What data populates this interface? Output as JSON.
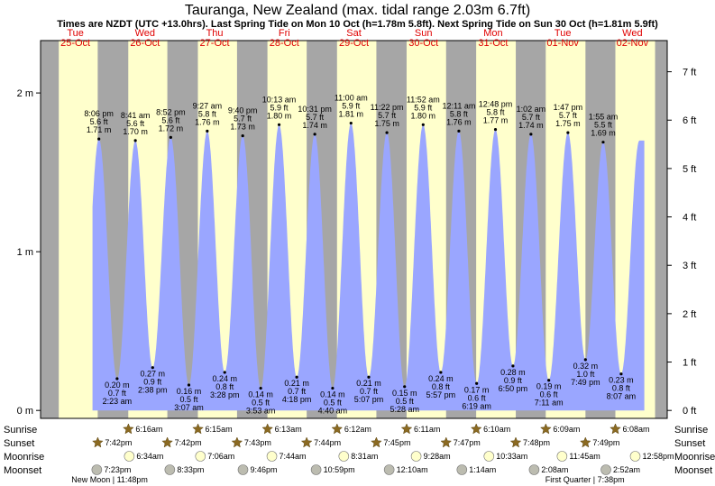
{
  "chart_data": {
    "type": "area",
    "title": "Tauranga, New Zealand (max. tidal range 2.03m 6.7ft)",
    "subtitle": "Times are NZDT (UTC +13.0hrs). Last Spring Tide on Mon 10 Oct (h=1.78m 5.8ft). Next Spring Tide on Sun 30 Oct (h=1.81m 5.9ft)",
    "ylim_m": [
      -0.05,
      2.33
    ],
    "left_axis": {
      "unit": "m",
      "ticks": [
        0,
        1,
        2
      ],
      "labels": [
        "0 m",
        "1 m",
        "2 m"
      ]
    },
    "right_axis": {
      "unit": "ft",
      "ticks": [
        0,
        1,
        2,
        3,
        4,
        5,
        6,
        7
      ],
      "labels": [
        "0 ft",
        "1 ft",
        "2 ft",
        "3 ft",
        "4 ft",
        "5 ft",
        "6 ft",
        "7 ft"
      ]
    },
    "days": [
      {
        "weekday": "Tue",
        "date": "25-Oct"
      },
      {
        "weekday": "Wed",
        "date": "26-Oct"
      },
      {
        "weekday": "Thu",
        "date": "27-Oct"
      },
      {
        "weekday": "Fri",
        "date": "28-Oct"
      },
      {
        "weekday": "Sat",
        "date": "29-Oct"
      },
      {
        "weekday": "Sun",
        "date": "30-Oct"
      },
      {
        "weekday": "Mon",
        "date": "31-Oct"
      },
      {
        "weekday": "Tue",
        "date": "01-Nov"
      },
      {
        "weekday": "Wed",
        "date": "02-Nov"
      }
    ],
    "night_bands": [
      {
        "from_h": 0,
        "to_h": 6.27
      },
      {
        "from_h": 19.7,
        "to_h": 30.23
      },
      {
        "from_h": 43.7,
        "to_h": 54.22
      },
      {
        "from_h": 67.72,
        "to_h": 78.2
      },
      {
        "from_h": 91.73,
        "to_h": 102.18
      },
      {
        "from_h": 115.75,
        "to_h": 126.17
      },
      {
        "from_h": 139.78,
        "to_h": 150.15
      },
      {
        "from_h": 163.8,
        "to_h": 174.13
      },
      {
        "from_h": 187.82,
        "to_h": 198.13
      },
      {
        "from_h": 211.82,
        "to_h": 216
      }
    ],
    "extremes": [
      {
        "hour": 20.1,
        "m": "1.71 m",
        "ft": "5.6 ft",
        "time": "8:06 pm",
        "high": true,
        "height": 1.71
      },
      {
        "hour": 26.38,
        "m": "0.20 m",
        "ft": "0.7 ft",
        "time": "2:23 am",
        "high": false,
        "height": 0.2
      },
      {
        "hour": 32.68,
        "m": "1.70 m",
        "ft": "5.6 ft",
        "time": "8:41 am",
        "high": true,
        "height": 1.7
      },
      {
        "hour": 38.63,
        "m": "0.27 m",
        "ft": "0.9 ft",
        "time": "2:38 pm",
        "high": false,
        "height": 0.27
      },
      {
        "hour": 44.87,
        "m": "1.72 m",
        "ft": "5.6 ft",
        "time": "8:52 pm",
        "high": true,
        "height": 1.72
      },
      {
        "hour": 51.12,
        "m": "0.16 m",
        "ft": "0.5 ft",
        "time": "3:07 am",
        "high": false,
        "height": 0.16
      },
      {
        "hour": 57.45,
        "m": "1.76 m",
        "ft": "5.8 ft",
        "time": "9:27 am",
        "high": true,
        "height": 1.76
      },
      {
        "hour": 63.47,
        "m": "0.24 m",
        "ft": "0.8 ft",
        "time": "3:28 pm",
        "high": false,
        "height": 0.24
      },
      {
        "hour": 69.67,
        "m": "1.73 m",
        "ft": "5.7 ft",
        "time": "9:40 pm",
        "high": true,
        "height": 1.73
      },
      {
        "hour": 75.88,
        "m": "0.14 m",
        "ft": "0.5 ft",
        "time": "3:53 am",
        "high": false,
        "height": 0.14
      },
      {
        "hour": 82.22,
        "m": "1.80 m",
        "ft": "5.9 ft",
        "time": "10:13 am",
        "high": true,
        "height": 1.8
      },
      {
        "hour": 88.3,
        "m": "0.21 m",
        "ft": "0.7 ft",
        "time": "4:18 pm",
        "high": false,
        "height": 0.21
      },
      {
        "hour": 94.52,
        "m": "1.74 m",
        "ft": "5.7 ft",
        "time": "10:31 pm",
        "high": true,
        "height": 1.74
      },
      {
        "hour": 100.67,
        "m": "0.14 m",
        "ft": "0.5 ft",
        "time": "4:40 am",
        "high": false,
        "height": 0.14
      },
      {
        "hour": 107,
        "m": "1.81 m",
        "ft": "5.9 ft",
        "time": "11:00 am",
        "high": true,
        "height": 1.81
      },
      {
        "hour": 113.12,
        "m": "0.21 m",
        "ft": "0.7 ft",
        "time": "5:07 pm",
        "high": false,
        "height": 0.21
      },
      {
        "hour": 119.37,
        "m": "1.75 m",
        "ft": "5.7 ft",
        "time": "11:22 pm",
        "high": true,
        "height": 1.75
      },
      {
        "hour": 125.47,
        "m": "0.15 m",
        "ft": "0.5 ft",
        "time": "5:28 am",
        "high": false,
        "height": 0.15
      },
      {
        "hour": 131.87,
        "m": "1.80 m",
        "ft": "5.9 ft",
        "time": "11:52 am",
        "high": true,
        "height": 1.8
      },
      {
        "hour": 137.95,
        "m": "0.24 m",
        "ft": "0.8 ft",
        "time": "5:57 pm",
        "high": false,
        "height": 0.24
      },
      {
        "hour": 144.18,
        "m": "1.76 m",
        "ft": "5.8 ft",
        "time": "12:11 am",
        "high": true,
        "height": 1.76
      },
      {
        "hour": 150.32,
        "m": "0.17 m",
        "ft": "0.6 ft",
        "time": "6:19 am",
        "high": false,
        "height": 0.17
      },
      {
        "hour": 156.8,
        "m": "1.77 m",
        "ft": "5.8 ft",
        "time": "12:48 pm",
        "high": true,
        "height": 1.77
      },
      {
        "hour": 162.83,
        "m": "0.28 m",
        "ft": "0.9 ft",
        "time": "6:50 pm",
        "high": false,
        "height": 0.28
      },
      {
        "hour": 169.03,
        "m": "1.74 m",
        "ft": "5.7 ft",
        "time": "1:02 am",
        "high": true,
        "height": 1.74
      },
      {
        "hour": 175.18,
        "m": "0.19 m",
        "ft": "0.6 ft",
        "time": "7:11 am",
        "high": false,
        "height": 0.19
      },
      {
        "hour": 181.78,
        "m": "1.75 m",
        "ft": "5.7 ft",
        "time": "1:47 pm",
        "high": true,
        "height": 1.75
      },
      {
        "hour": 187.82,
        "m": "0.32 m",
        "ft": "1.0 ft",
        "time": "7:49 pm",
        "high": false,
        "height": 0.32
      },
      {
        "hour": 193.92,
        "m": "1.69 m",
        "ft": "5.5 ft",
        "time": "1:55 am",
        "high": true,
        "height": 1.69
      },
      {
        "hour": 200.12,
        "m": "0.23 m",
        "ft": "0.8 ft",
        "time": "8:07 am",
        "high": false,
        "height": 0.23
      }
    ],
    "astro": {
      "row_labels": [
        "Sunrise",
        "Sunset",
        "Moonrise",
        "Moonset"
      ],
      "sunrise": [
        {
          "hour": 30.27,
          "text": "6:16am"
        },
        {
          "hour": 54.25,
          "text": "6:15am"
        },
        {
          "hour": 78.22,
          "text": "6:13am"
        },
        {
          "hour": 102.2,
          "text": "6:12am"
        },
        {
          "hour": 126.18,
          "text": "6:11am"
        },
        {
          "hour": 150.17,
          "text": "6:10am"
        },
        {
          "hour": 174.15,
          "text": "6:09am"
        },
        {
          "hour": 198.13,
          "text": "6:08am"
        }
      ],
      "sunset": [
        {
          "hour": 19.7,
          "text": "7:42pm"
        },
        {
          "hour": 43.7,
          "text": "7:42pm"
        },
        {
          "hour": 67.72,
          "text": "7:43pm"
        },
        {
          "hour": 91.73,
          "text": "7:44pm"
        },
        {
          "hour": 115.75,
          "text": "7:45pm"
        },
        {
          "hour": 139.78,
          "text": "7:47pm"
        },
        {
          "hour": 163.8,
          "text": "7:48pm"
        },
        {
          "hour": 187.82,
          "text": "7:49pm"
        }
      ],
      "moonrise": [
        {
          "hour": 30.57,
          "text": "6:34am"
        },
        {
          "hour": 55.1,
          "text": "7:06am"
        },
        {
          "hour": 79.73,
          "text": "7:44am"
        },
        {
          "hour": 104.52,
          "text": "8:31am"
        },
        {
          "hour": 129.47,
          "text": "9:28am"
        },
        {
          "hour": 154.55,
          "text": "10:33am"
        },
        {
          "hour": 179.75,
          "text": "11:45am"
        },
        {
          "hour": 204.97,
          "text": "12:58pm"
        }
      ],
      "moonset": [
        {
          "hour": 19.38,
          "text": "7:23pm"
        },
        {
          "hour": 44.55,
          "text": "8:33pm"
        },
        {
          "hour": 69.77,
          "text": "9:46pm"
        },
        {
          "hour": 94.98,
          "text": "10:59pm"
        },
        {
          "hour": 120.17,
          "text": "12:10am"
        },
        {
          "hour": 145.23,
          "text": "1:14am"
        },
        {
          "hour": 170.13,
          "text": "2:08am"
        },
        {
          "hour": 194.87,
          "text": "2:52am"
        }
      ],
      "moon_phases": [
        {
          "hour": 23.8,
          "text": "New Moon | 11:48pm"
        },
        {
          "hour": 187.63,
          "text": "First Quarter | 7:38pm"
        }
      ]
    },
    "colors": {
      "water": "#9aa6ff",
      "day_bg": "#ffffcc",
      "night_bg": "#a6a6a6",
      "day_label": "#e00000",
      "sun_icon": "#8b6a22",
      "moon_rise": "#ffffcc",
      "moon_set": "#bcbcb0"
    }
  }
}
